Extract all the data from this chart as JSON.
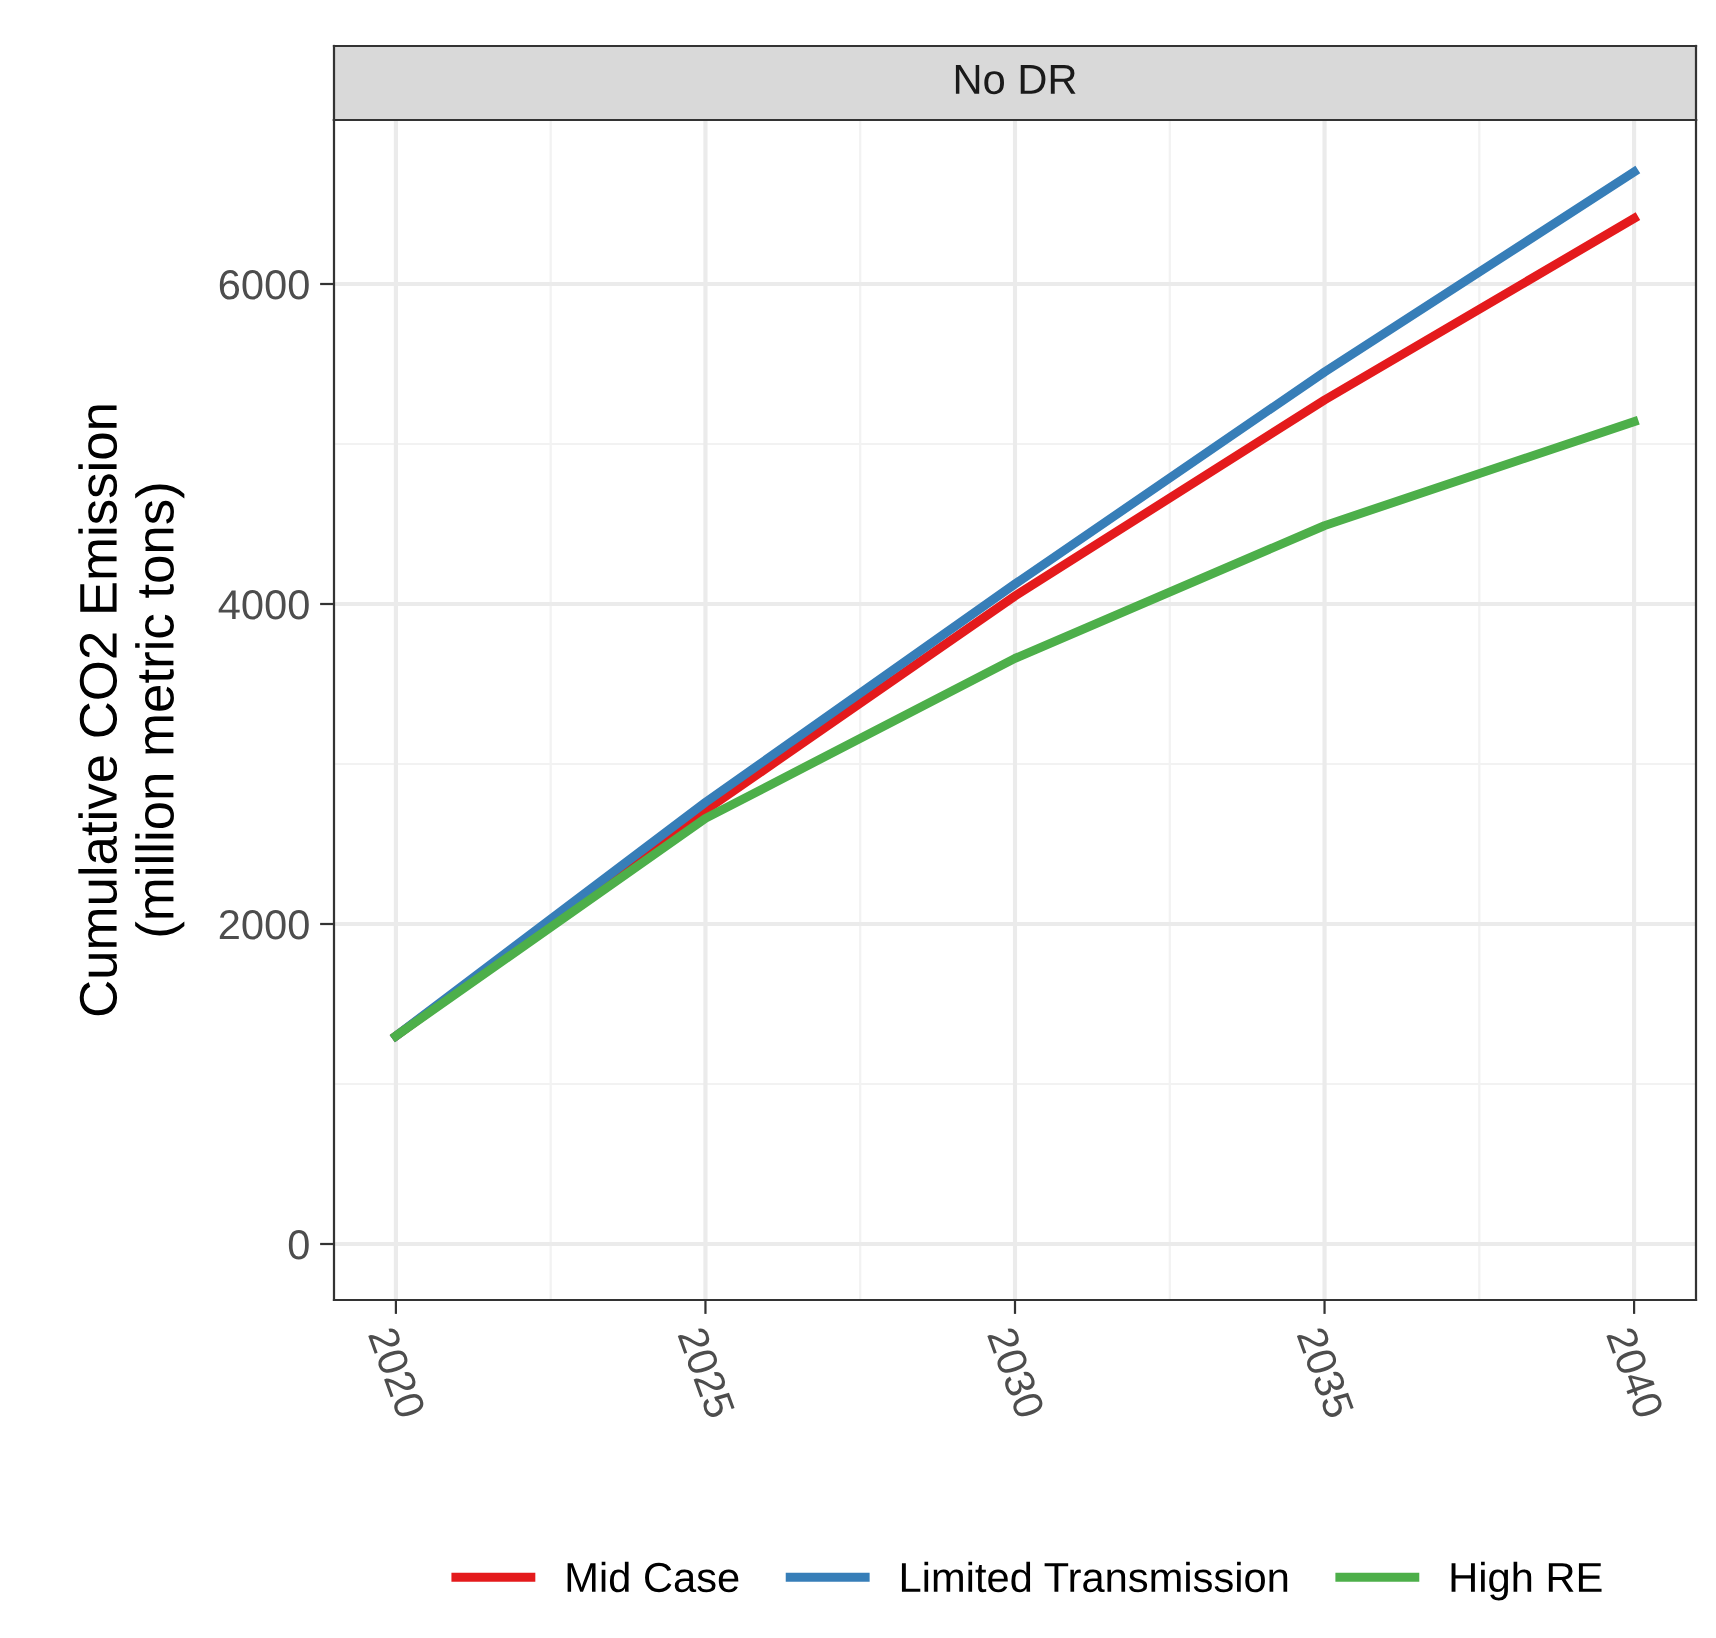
{
  "chart_data": {
    "type": "line",
    "title": "No DR",
    "ylabel": "Cumulative CO2 Emission\n(million metric tons)",
    "x": [
      2020,
      2025,
      2030,
      2035,
      2040
    ],
    "series": [
      {
        "name": "Mid Case",
        "color": "#e41a1c",
        "values": [
          1300,
          2710,
          4050,
          5275,
          6410
        ]
      },
      {
        "name": "Limited Transmission",
        "color": "#377eb8",
        "values": [
          1300,
          2760,
          4125,
          5450,
          6700
        ]
      },
      {
        "name": "High RE",
        "color": "#4daf4a",
        "values": [
          1300,
          2660,
          3660,
          4490,
          5140
        ]
      }
    ],
    "xlim": [
      2019,
      2041
    ],
    "xticks": [
      2020,
      2025,
      2030,
      2035,
      2040
    ],
    "ylim": [
      -350,
      7025
    ],
    "yticks": [
      0,
      2000,
      4000,
      6000
    ],
    "grid": true,
    "legend": "bottom",
    "marker": "none",
    "line_style": "solid"
  }
}
